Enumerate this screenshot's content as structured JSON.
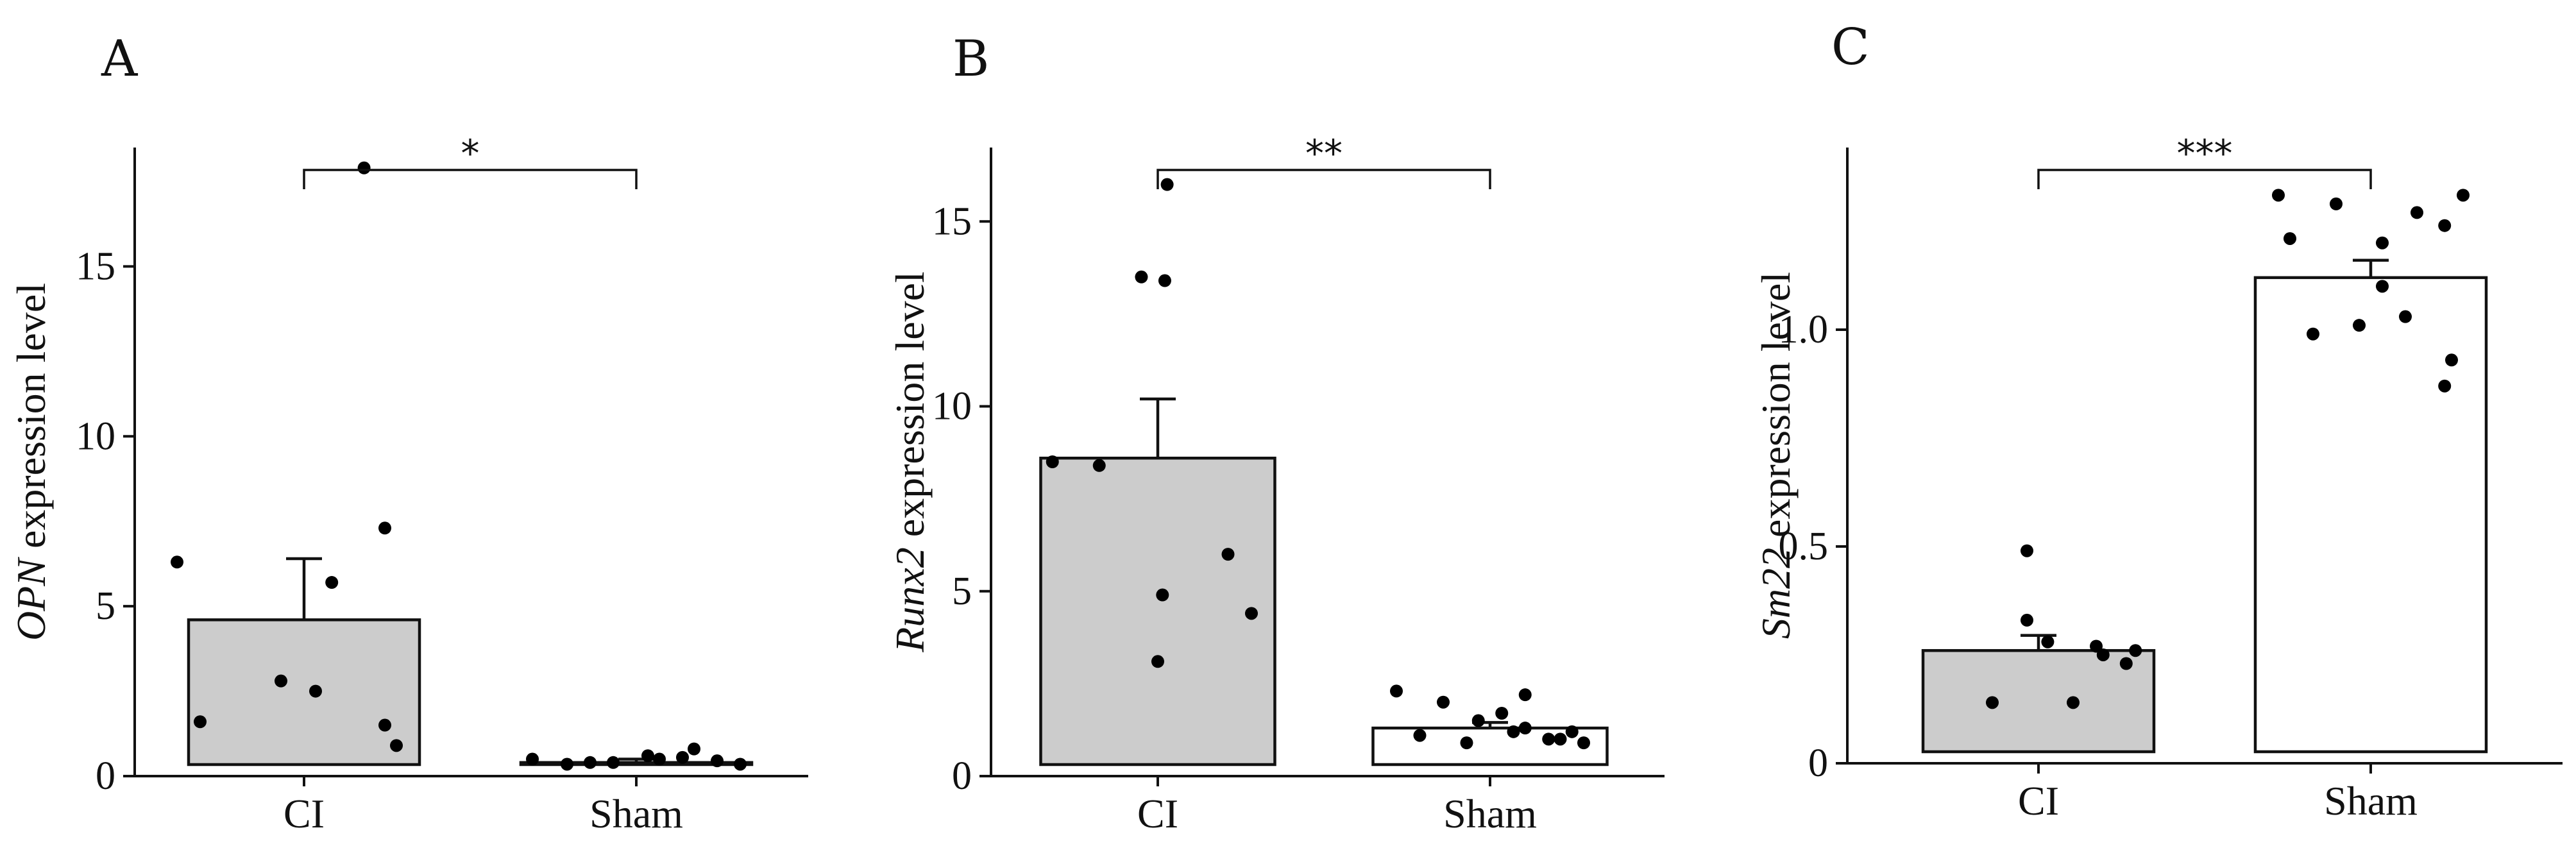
{
  "chart_data": [
    {
      "type": "bar",
      "panel": "A",
      "ylabel_gene": "OPN",
      "ylabel_rest": " expression level",
      "categories": [
        "CI",
        "Sham"
      ],
      "values": [
        4.6,
        0.4
      ],
      "errors": [
        1.8,
        0.1
      ],
      "fill_colors": [
        "#cccccc",
        "#ffffff"
      ],
      "ylim": [
        0,
        18.5
      ],
      "yticks": [
        0,
        5,
        10,
        15
      ],
      "ytick_labels": [
        "0",
        "5",
        "10",
        "15"
      ],
      "significance": "*",
      "points": [
        [
          17.9,
          6.3,
          5.7,
          7.3,
          1.6,
          2.8,
          2.5,
          1.5,
          0.9
        ],
        [
          0.5,
          0.35,
          0.4,
          0.6,
          0.55,
          0.45,
          0.35,
          0.8,
          0.4,
          0.5
        ]
      ]
    },
    {
      "type": "bar",
      "panel": "B",
      "ylabel_gene": "Runx2",
      "ylabel_rest": " expression level",
      "categories": [
        "CI",
        "Sham"
      ],
      "values": [
        8.6,
        1.3
      ],
      "errors": [
        1.6,
        0.15
      ],
      "fill_colors": [
        "#cccccc",
        "#ffffff"
      ],
      "ylim": [
        0,
        17
      ],
      "yticks": [
        0,
        5,
        10,
        15
      ],
      "ytick_labels": [
        "0",
        "5",
        "10",
        "15"
      ],
      "significance": "**",
      "points": [
        [
          16.0,
          13.5,
          13.4,
          8.5,
          8.4,
          6.0,
          4.9,
          4.4,
          3.1
        ],
        [
          2.3,
          2.0,
          1.5,
          1.2,
          1.0,
          0.9,
          1.1,
          1.3,
          0.9,
          1.2,
          1.7,
          2.2,
          1.0
        ]
      ]
    },
    {
      "type": "bar",
      "panel": "C",
      "ylabel_gene": "Sm22",
      "ylabel_rest": " expression level",
      "categories": [
        "CI",
        "Sham"
      ],
      "values": [
        0.26,
        1.12
      ],
      "errors": [
        0.035,
        0.04
      ],
      "fill_colors": [
        "#cccccc",
        "#ffffff"
      ],
      "ylim": [
        0,
        1.42
      ],
      "yticks": [
        0,
        0.5,
        1.0
      ],
      "ytick_labels": [
        "0",
        "0.5",
        "1.0"
      ],
      "significance": "***",
      "points": [
        [
          0.49,
          0.33,
          0.28,
          0.23,
          0.25,
          0.26,
          0.27,
          0.14,
          0.14
        ],
        [
          1.31,
          1.29,
          1.31,
          1.27,
          1.21,
          1.2,
          1.1,
          1.03,
          1.01,
          0.99,
          1.24,
          0.93,
          0.87
        ]
      ]
    }
  ]
}
